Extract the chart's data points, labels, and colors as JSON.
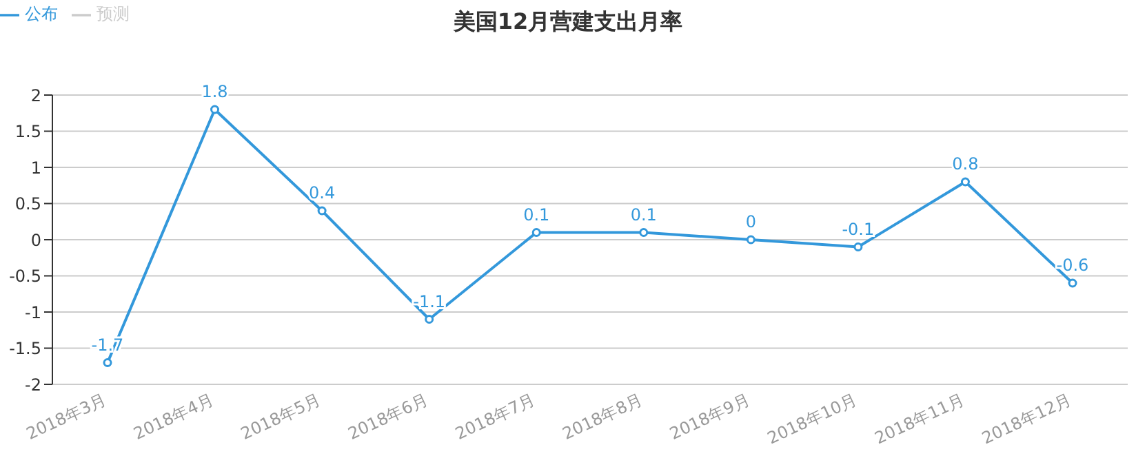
{
  "chart_data": {
    "type": "line",
    "title": "美国12月营建支出月率",
    "categories": [
      "2018年3月",
      "2018年4月",
      "2018年5月",
      "2018年6月",
      "2018年7月",
      "2018年8月",
      "2018年9月",
      "2018年10月",
      "2018年11月",
      "2018年12月"
    ],
    "series": [
      {
        "name": "公布",
        "color": "#3398db",
        "values": [
          -1.7,
          1.8,
          0.4,
          -1.1,
          0.1,
          0.1,
          0,
          -0.1,
          0.8,
          -0.6
        ]
      },
      {
        "name": "预测",
        "color": "#cccccc",
        "values": [
          null,
          null,
          null,
          null,
          null,
          null,
          null,
          null,
          null,
          null
        ]
      }
    ],
    "ylim": [
      -2,
      2
    ],
    "yticks": [
      -2,
      -1.5,
      -1,
      -0.5,
      0,
      0.5,
      1,
      1.5,
      2
    ],
    "grid": "y",
    "legend": "top left",
    "marker": "circle",
    "data_labels": true
  }
}
